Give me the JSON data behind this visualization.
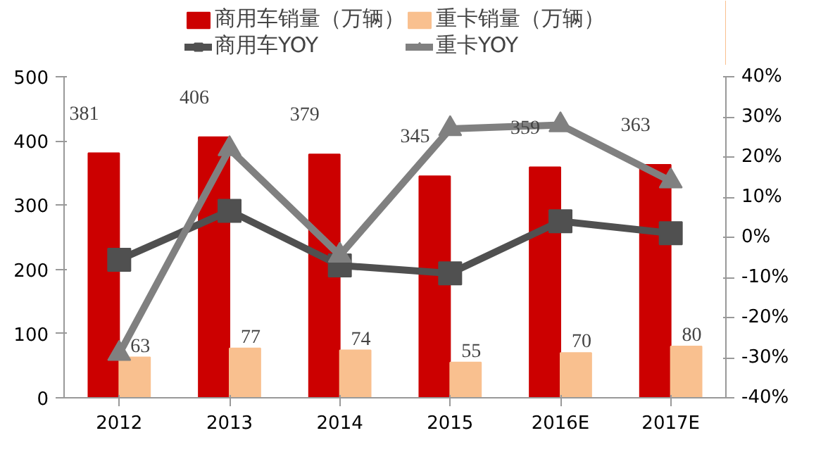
{
  "chart_data": {
    "type": "bar",
    "categories": [
      "2012",
      "2013",
      "2014",
      "2015",
      "2016E",
      "2017E"
    ],
    "series": [
      {
        "name": "商用车销量（万辆）",
        "color": "#cc0000",
        "values": [
          381,
          406,
          379,
          345,
          359,
          363
        ],
        "value_labels": [
          "381",
          "406",
          "379",
          "345",
          "359",
          "363"
        ]
      },
      {
        "name": "重卡销量（万辆）",
        "color": "#f9c08f",
        "values": [
          63,
          77,
          74,
          55,
          70,
          80
        ],
        "value_labels": [
          "63",
          "77",
          "74",
          "55",
          "70",
          "80"
        ]
      },
      {
        "name": "商用车YOY",
        "type": "line",
        "axis": "y2",
        "marker": "square",
        "color": "#505050",
        "values": [
          -5.6,
          6.6,
          -7,
          -9,
          4,
          1
        ]
      },
      {
        "name": "重卡YOY",
        "type": "line",
        "axis": "y2",
        "marker": "triangle",
        "color": "#808080",
        "values": [
          -29,
          22,
          -4.5,
          27,
          28,
          14
        ]
      }
    ],
    "ylim": [
      0,
      500
    ],
    "yticks": [
      0,
      100,
      200,
      300,
      400,
      500
    ],
    "y2lim": [
      -40,
      40
    ],
    "y2ticks": [
      {
        "value": -40,
        "label": "-40%"
      },
      {
        "value": -30,
        "label": "-30%"
      },
      {
        "value": -20,
        "label": "-20%"
      },
      {
        "value": -10,
        "label": "-10%"
      },
      {
        "value": 0,
        "label": "0%"
      },
      {
        "value": 10,
        "label": "10%"
      },
      {
        "value": 20,
        "label": "20%"
      },
      {
        "value": 30,
        "label": "30%"
      },
      {
        "value": 40,
        "label": "40%"
      }
    ],
    "grid": false,
    "legend": "top"
  }
}
